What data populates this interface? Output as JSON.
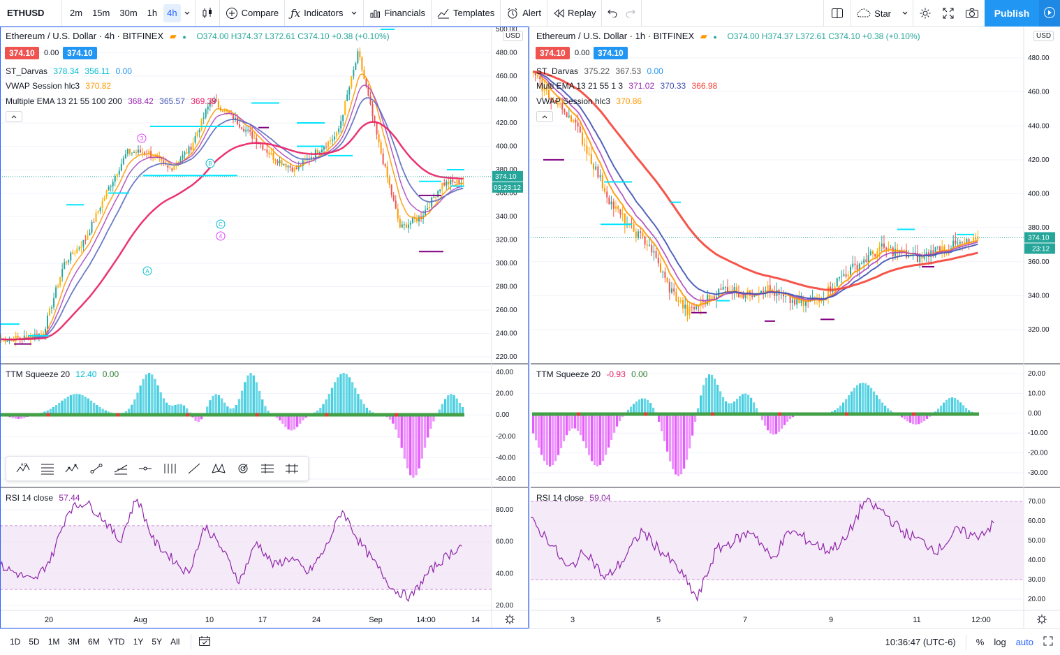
{
  "toolbar": {
    "symbol": "ETHUSD",
    "intervals": [
      "2m",
      "15m",
      "30m",
      "1h",
      "4h"
    ],
    "active_interval": "4h",
    "compare": "Compare",
    "indicators": "Indicators",
    "financials": "Financials",
    "templates": "Templates",
    "alert": "Alert",
    "replay": "Replay",
    "layout_name": "Star",
    "publish": "Publish"
  },
  "left_pane": {
    "title": "Ethereum / U.S. Dollar · 4h · BITFINEX",
    "ohlc": "O374.00 H374.37 L372.61 C374.10 +0.38 (+0.10%)",
    "bid": "374.10",
    "spread": "0.00",
    "ask": "374.10",
    "ind1_name": "ST_Darvas",
    "ind1_v1": "378.34",
    "ind1_v2": "356.11",
    "ind1_v3": "0.00",
    "ind2_name": "VWAP Session hlc3",
    "ind2_v1": "370.82",
    "ind3_name": "Multiple EMA 13 21 55 100 200",
    "ind3_v1": "368.42",
    "ind3_v2": "365.57",
    "ind3_v3": "369.39",
    "last_price": "374.10",
    "countdown": "03:23:12",
    "currency": "USD",
    "price_ticks": [
      "500.00",
      "480.00",
      "460.00",
      "440.00",
      "420.00",
      "400.00",
      "380.00",
      "360.00",
      "340.00",
      "320.00",
      "300.00",
      "280.00",
      "260.00",
      "240.00",
      "220.00"
    ],
    "squeeze_name": "TTM Squeeze 20",
    "squeeze_v1": "12.40",
    "squeeze_v2": "0.00",
    "squeeze_ticks": [
      "40.00",
      "20.00",
      "0.00",
      "-20.00",
      "-40.00",
      "-60.00"
    ],
    "rsi_name": "RSI 14 close",
    "rsi_v": "57.44",
    "rsi_ticks": [
      "80.00",
      "60.00",
      "40.00",
      "20.00"
    ],
    "time_ticks": [
      "20",
      "Aug",
      "10",
      "17",
      "24",
      "Sep",
      "14:00",
      "14"
    ],
    "wave_labels": [
      "3",
      "B",
      "C",
      "4",
      "A"
    ]
  },
  "right_pane": {
    "title": "Ethereum / U.S. Dollar · 1h · BITFINEX",
    "ohlc": "O374.00 H374.37 L372.61 C374.10 +0.38 (+0.10%)",
    "bid": "374.10",
    "spread": "0.00",
    "ask": "374.10",
    "ind1_name": "ST_Darvas",
    "ind1_v1": "375.22",
    "ind1_v2": "367.53",
    "ind1_v3": "0.00",
    "ind2_name": "Multi EMA 13 21 55 1 3",
    "ind2_v1": "371.02",
    "ind2_v2": "370.33",
    "ind2_v3": "366.98",
    "ind3_name": "VWAP Session hlc3",
    "ind3_v1": "370.86",
    "last_price": "374.10",
    "countdown": "23:12",
    "currency": "USD",
    "price_ticks": [
      "480.00",
      "460.00",
      "440.00",
      "420.00",
      "400.00",
      "380.00",
      "360.00",
      "340.00",
      "320.00"
    ],
    "squeeze_name": "TTM Squeeze 20",
    "squeeze_v1": "-0.93",
    "squeeze_v2": "0.00",
    "squeeze_ticks": [
      "20.00",
      "10.00",
      "0.00",
      "-10.00",
      "-20.00",
      "-30.00"
    ],
    "rsi_name": "RSI 14 close",
    "rsi_v": "59.04",
    "rsi_ticks": [
      "70.00",
      "60.00",
      "50.00",
      "40.00",
      "30.00",
      "20.00"
    ],
    "time_ticks": [
      "3",
      "5",
      "7",
      "9",
      "11",
      "12:00"
    ]
  },
  "bottombar": {
    "ranges": [
      "1D",
      "5D",
      "1M",
      "3M",
      "6M",
      "YTD",
      "1Y",
      "5Y",
      "All"
    ],
    "clock": "10:36:47 (UTC-6)",
    "percent": "%",
    "log": "log",
    "auto": "auto"
  },
  "colors": {
    "accent": "#2962ff",
    "up": "#26a69a",
    "down": "#ef5350",
    "ema_red": "#e91e63",
    "ema_blue": "#5c6bc0",
    "cyan": "#00e5ff",
    "purple": "#800080",
    "rsi": "#8e24aa"
  }
}
